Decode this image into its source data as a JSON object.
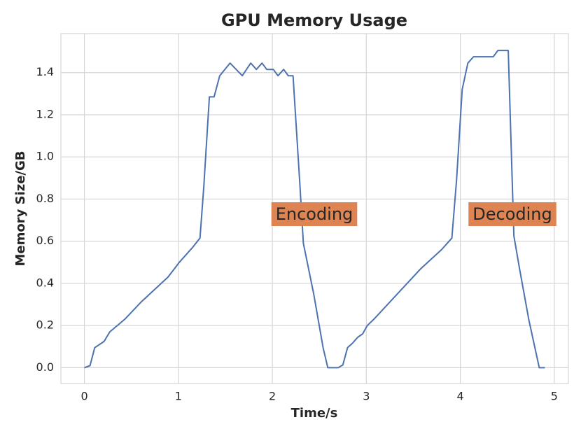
{
  "chart_data": {
    "type": "line",
    "title": "GPU Memory Usage",
    "x_label": "Time/s",
    "y_label": "Memory Size/GB",
    "xlim": [
      -0.25,
      5.15
    ],
    "ylim": [
      -0.075,
      1.585
    ],
    "xticks": [
      0,
      1,
      2,
      3,
      4,
      5
    ],
    "yticks": [
      {
        "value": 0,
        "label": "0.0"
      },
      0.2,
      0.4,
      0.6,
      0.8,
      {
        "value": 1,
        "label": "1.0"
      },
      1.2,
      1.4
    ],
    "grid": true,
    "annotations": [
      "Encoding",
      "Decoding"
    ],
    "annotation_color": "#dd8452",
    "series": [
      {
        "color": "#4c72b0",
        "x": [
          0,
          0.06,
          0.11,
          0.21,
          0.27,
          0.43,
          0.6,
          0.89,
          1.01,
          1.15,
          1.23,
          1.27,
          1.33,
          1.38,
          1.44,
          1.55,
          1.68,
          1.77,
          1.83,
          1.89,
          1.94,
          2.01,
          2.06,
          2.12,
          2.17,
          2.22,
          2.29,
          2.33,
          2.44,
          2.54,
          2.59,
          2.7,
          2.75,
          2.8,
          2.85,
          2.91,
          2.96,
          3.01,
          3.08,
          3.58,
          3.8,
          3.91,
          3.96,
          4.02,
          4.08,
          4.14,
          4.35,
          4.4,
          4.51,
          4.57,
          4.63,
          4.73,
          4.84,
          4.9
        ],
        "values": [
          0,
          0.01,
          0.095,
          0.125,
          0.17,
          0.23,
          0.31,
          0.43,
          0.5,
          0.57,
          0.615,
          0.855,
          1.285,
          1.285,
          1.385,
          1.445,
          1.385,
          1.445,
          1.415,
          1.445,
          1.415,
          1.415,
          1.385,
          1.415,
          1.385,
          1.385,
          0.89,
          0.59,
          0.35,
          0.095,
          0,
          0,
          0.013,
          0.095,
          0.115,
          0.145,
          0.16,
          0.2,
          0.23,
          0.47,
          0.56,
          0.615,
          0.89,
          1.32,
          1.445,
          1.475,
          1.475,
          1.505,
          1.505,
          0.625,
          0.47,
          0.225,
          0,
          0
        ]
      }
    ]
  }
}
